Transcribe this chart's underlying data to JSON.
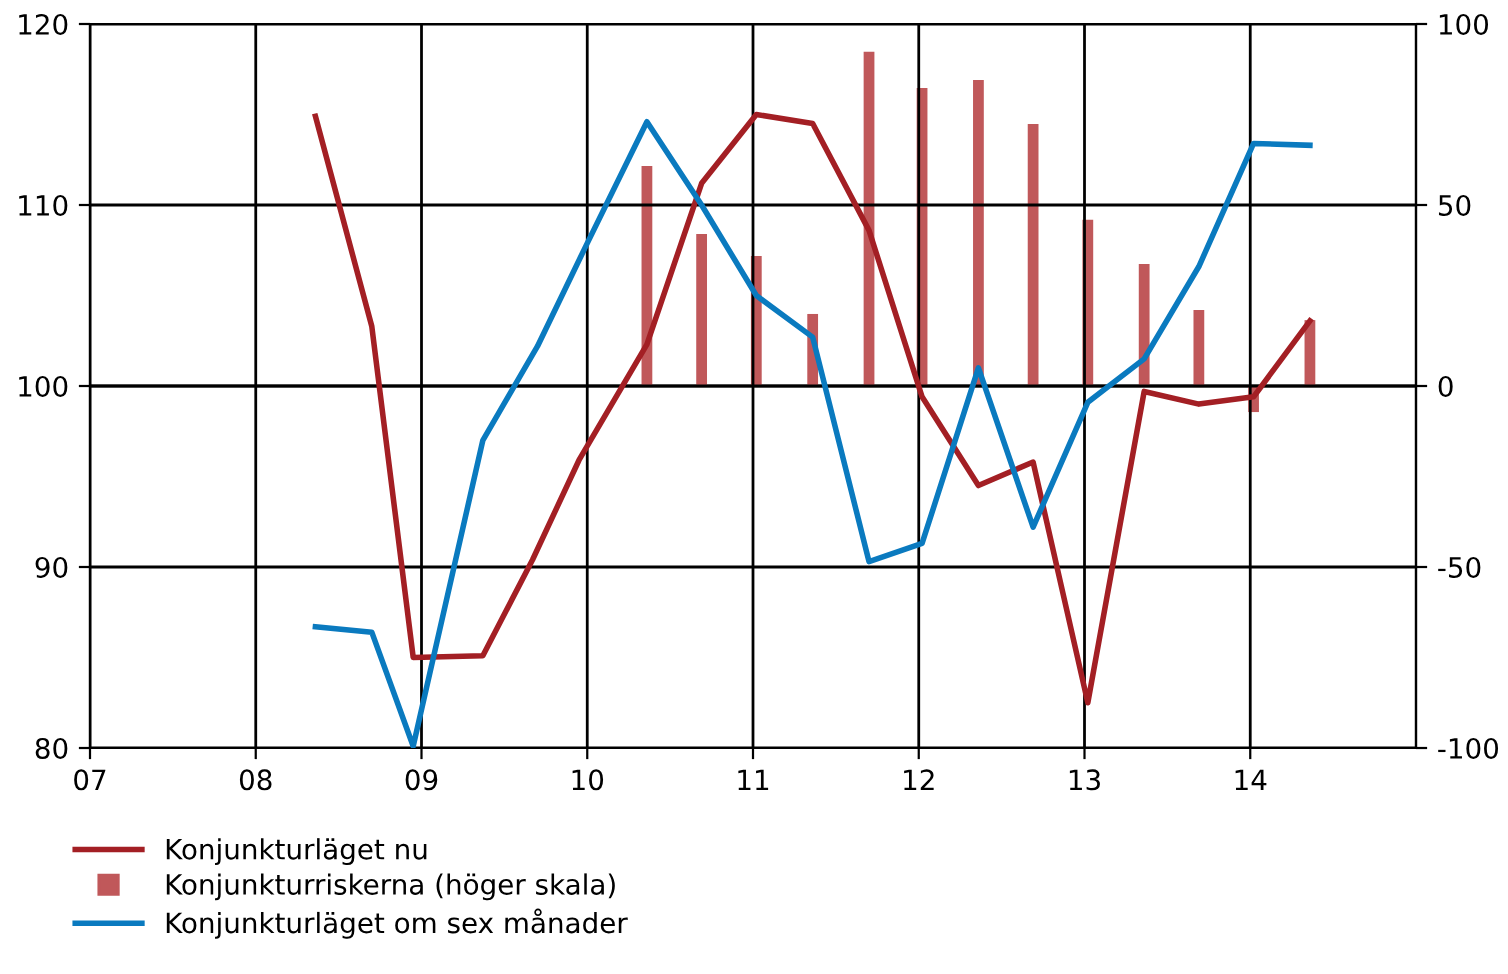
{
  "chart_data": {
    "type": "line",
    "series": [
      {
        "name": "Konjunkturläget nu",
        "color": "#a31f24",
        "x": [
          2008.36,
          2008.7,
          2008.95,
          2009.37,
          2009.67,
          2009.95,
          2010.36,
          2010.69,
          2011.02,
          2011.36,
          2011.7,
          2012.02,
          2012.36,
          2012.69,
          2013.02,
          2013.36,
          2013.69,
          2014.02,
          2014.36
        ],
        "values": [
          114.9,
          103.3,
          85.0,
          85.1,
          90.4,
          95.9,
          102.3,
          111.2,
          115.0,
          114.5,
          108.6,
          99.4,
          94.5,
          95.8,
          82.5,
          99.7,
          99.0,
          99.4,
          103.6
        ]
      },
      {
        "name": "Konjunkturriskerna (höger skala)",
        "type": "bar",
        "axis": "y2",
        "color": "#c0585a",
        "x": [
          2010.36,
          2010.69,
          2011.02,
          2011.36,
          2011.7,
          2012.02,
          2012.36,
          2012.69,
          2013.02,
          2013.36,
          2013.69,
          2014.02,
          2014.36
        ],
        "values": [
          60.8,
          42.0,
          35.9,
          19.9,
          92.3,
          82.3,
          84.5,
          72.4,
          45.9,
          33.7,
          21.0,
          -7.2,
          18.2
        ]
      },
      {
        "name": "Konjunkturläget om sex månader",
        "color": "#0a7abf",
        "x": [
          2008.36,
          2008.7,
          2008.95,
          2009.37,
          2009.7,
          2009.99,
          2010.36,
          2010.69,
          2011.02,
          2011.36,
          2011.7,
          2012.02,
          2012.36,
          2012.69,
          2013.02,
          2013.36,
          2013.69,
          2014.02,
          2014.36
        ],
        "values": [
          86.7,
          86.4,
          80.1,
          97.0,
          102.2,
          107.7,
          114.6,
          110.0,
          105.0,
          102.7,
          90.3,
          91.3,
          101.0,
          92.2,
          99.1,
          101.5,
          106.6,
          113.4,
          113.3
        ]
      }
    ],
    "xlim": [
      2007,
      2015
    ],
    "xticks": [
      {
        "value": 2007,
        "label": "07"
      },
      {
        "value": 2008,
        "label": "08"
      },
      {
        "value": 2009,
        "label": "09"
      },
      {
        "value": 2010,
        "label": "10"
      },
      {
        "value": 2011,
        "label": "11"
      },
      {
        "value": 2012,
        "label": "12"
      },
      {
        "value": 2013,
        "label": "13"
      },
      {
        "value": 2014,
        "label": "14"
      }
    ],
    "ylim": [
      80,
      120
    ],
    "yticks": [
      80,
      90,
      100,
      110,
      120
    ],
    "y2lim": [
      -100,
      100
    ],
    "y2ticks": [
      -100,
      -50,
      0,
      50,
      100
    ],
    "grid": true,
    "legend": "bottom left",
    "marker": "none",
    "line_style": "solid"
  }
}
